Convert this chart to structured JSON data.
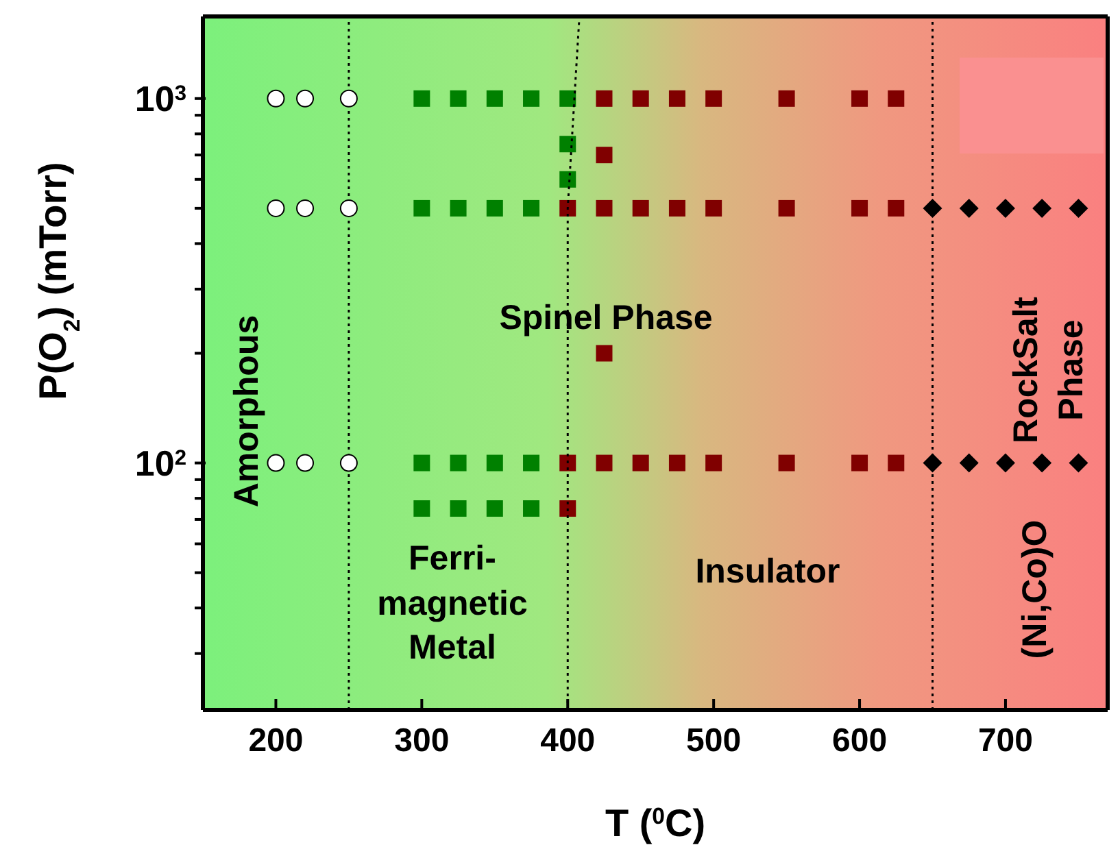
{
  "chart_data": {
    "type": "scatter",
    "xlabel": "T ($^{0}$C)",
    "ylabel": "P(O$_{2}$)  (mTorr)",
    "xlim": [
      150,
      770
    ],
    "xticks": [
      200,
      300,
      400,
      500,
      600,
      700
    ],
    "ylim": [
      21,
      1680
    ],
    "log": "y",
    "yticks": [
      {
        "value": 30,
        "label": null
      },
      {
        "value": 40,
        "label": null
      },
      {
        "value": 50,
        "label": null
      },
      {
        "value": 60,
        "label": null
      },
      {
        "value": 70,
        "label": null
      },
      {
        "value": 80,
        "label": null
      },
      {
        "value": 90,
        "label": null
      },
      {
        "value": 100,
        "label": "10$^{2}$"
      },
      {
        "value": 200,
        "label": null
      },
      {
        "value": 300,
        "label": null
      },
      {
        "value": 400,
        "label": null
      },
      {
        "value": 500,
        "label": null
      },
      {
        "value": 600,
        "label": null
      },
      {
        "value": 700,
        "label": null
      },
      {
        "value": 800,
        "label": null
      },
      {
        "value": 900,
        "label": null
      },
      {
        "value": 1000,
        "label": "10$^{3}$"
      }
    ],
    "grid": false,
    "legend": false,
    "series": [
      {
        "type": "scatter",
        "marker": "circle",
        "color": "#ffffff",
        "x": [
          200,
          220,
          250,
          200,
          220,
          250,
          200,
          220,
          250
        ],
        "values": [
          1000,
          1000,
          1000,
          500,
          500,
          500,
          100,
          100,
          100
        ]
      },
      {
        "type": "scatter",
        "marker": "square",
        "color": "#008000",
        "x": [
          300,
          325,
          350,
          375,
          400,
          400,
          400,
          300,
          325,
          350,
          375,
          300,
          325,
          350,
          375,
          300,
          325,
          350,
          375
        ],
        "values": [
          1000,
          1000,
          1000,
          1000,
          1000,
          750,
          600,
          500,
          500,
          500,
          500,
          100,
          100,
          100,
          100,
          75,
          75,
          75,
          75
        ]
      },
      {
        "type": "scatter",
        "marker": "square",
        "color": "#800000",
        "x": [
          425,
          450,
          475,
          500,
          550,
          600,
          625,
          425,
          425,
          400,
          425,
          450,
          475,
          500,
          550,
          600,
          625,
          400,
          425,
          450,
          475,
          500,
          550,
          600,
          625,
          400
        ],
        "values": [
          1000,
          1000,
          1000,
          1000,
          1000,
          1000,
          1000,
          700,
          200,
          500,
          500,
          500,
          500,
          500,
          500,
          500,
          500,
          100,
          100,
          100,
          100,
          100,
          100,
          100,
          100,
          75
        ]
      },
      {
        "type": "scatter",
        "marker": "diamond",
        "color": "#000000",
        "x": [
          650,
          675,
          700,
          725,
          750,
          650,
          675,
          700,
          725,
          750
        ],
        "values": [
          500,
          500,
          500,
          500,
          500,
          100,
          100,
          100,
          100,
          100
        ]
      },
      {
        "type": "line",
        "marker": "none",
        "line_style": "dotted",
        "color": "#000000",
        "x": [
          400,
          400,
          408
        ],
        "values": [
          21,
          500,
          1680
        ]
      }
    ],
    "ref_lines": [
      {
        "axis": "x",
        "value": 250,
        "line_style": "dotted",
        "color": "#000000"
      },
      {
        "axis": "x",
        "value": 650,
        "line_style": "dotted",
        "color": "#000000"
      }
    ],
    "annotations": [
      "Amorphous",
      "Spinel Phase",
      "Ferri-\nmagnetic\nMetal",
      "Insulator",
      "RockSalt\nPhase",
      "(Ni,Co)O"
    ]
  }
}
